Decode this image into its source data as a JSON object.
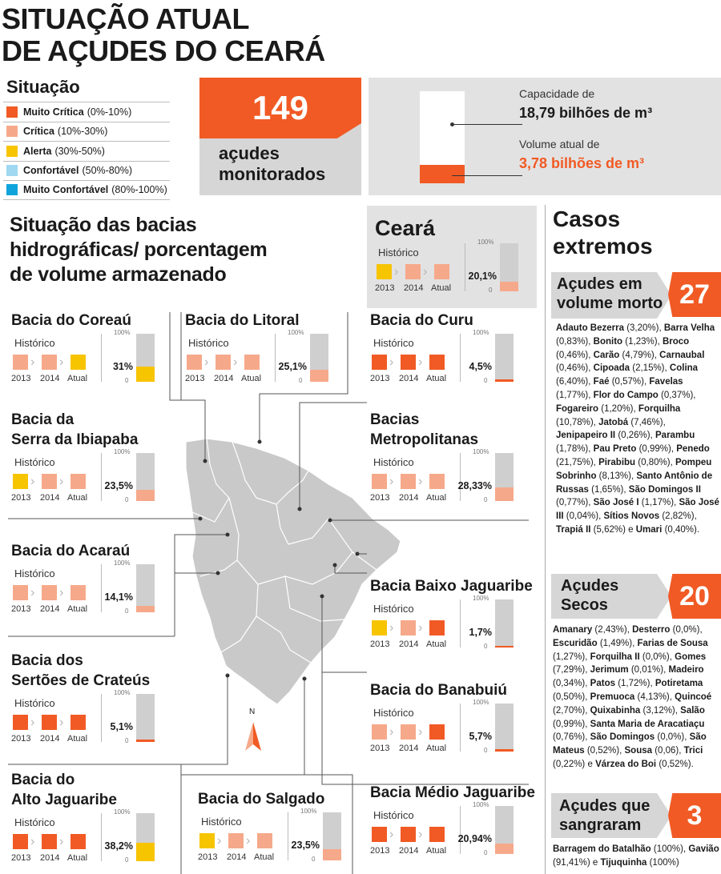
{
  "title": [
    "SITUAÇÃO ATUAL",
    "DE AÇUDES DO CEARÁ"
  ],
  "legend": {
    "title": "Situação",
    "items": [
      {
        "name": "Muito Crítica",
        "range": "(0%-10%)",
        "color": "#f15a24"
      },
      {
        "name": "Crítica",
        "range": "(10%-30%)",
        "color": "#f6a98a"
      },
      {
        "name": "Alerta",
        "range": "(30%-50%)",
        "color": "#f7c400"
      },
      {
        "name": "Confortável",
        "range": "(50%-80%)",
        "color": "#9fd8f0"
      },
      {
        "name": "Muito Confortável",
        "range": "(80%-100%)",
        "color": "#10a4dc"
      }
    ]
  },
  "monitored": {
    "number": "149",
    "label_line1": "açudes",
    "label_line2": "monitorados"
  },
  "capacity": {
    "capacity_label": "Capacidade de",
    "capacity_value": "18,79 bilhões de m³",
    "volume_label": "Volume atual de",
    "volume_value": "3,78 bilhões de m³",
    "fill_fraction": 0.201
  },
  "section_heading": [
    "Situação das bacias",
    "hidrográficas/ porcentagem",
    "de volume armazenado"
  ],
  "common": {
    "historico": "Histórico",
    "years": [
      "2013",
      "2014",
      "Atual"
    ],
    "axis_top": "100%",
    "axis_bottom": "0"
  },
  "colors": {
    "muito_critica": "#f15a24",
    "critica": "#f6a98a",
    "alerta": "#f7c400",
    "bar_bg": "#cfcfcf",
    "map": "#c9c9c9"
  },
  "chart_data": {
    "type": "bar",
    "categories_meaning": "basins",
    "basins": [
      {
        "id": "ceara",
        "name": "Ceará",
        "history": [
          "alerta",
          "critica",
          "critica"
        ],
        "value_label": "20,1%",
        "value": 20.1
      },
      {
        "id": "coreau",
        "name": "Bacia do Coreaú",
        "history": [
          "critica",
          "critica",
          "alerta"
        ],
        "value_label": "31%",
        "value": 31
      },
      {
        "id": "litoral",
        "name": "Bacia do Litoral",
        "history": [
          "critica",
          "critica",
          "critica"
        ],
        "value_label": "25,1%",
        "value": 25.1
      },
      {
        "id": "curu",
        "name": "Bacia do Curu",
        "history": [
          "muito_critica",
          "muito_critica",
          "muito_critica"
        ],
        "value_label": "4,5%",
        "value": 4.5
      },
      {
        "id": "ibiapaba",
        "name": "Bacia da Serra da Ibiapaba",
        "name_lines": [
          "Bacia da",
          "Serra da Ibiapaba"
        ],
        "history": [
          "alerta",
          "critica",
          "critica"
        ],
        "value_label": "23,5%",
        "value": 23.5
      },
      {
        "id": "metropolitanas",
        "name": "Bacias Metropolitanas",
        "name_lines": [
          "Bacias",
          "Metropolitanas"
        ],
        "history": [
          "critica",
          "critica",
          "critica"
        ],
        "value_label": "28,33%",
        "value": 28.33
      },
      {
        "id": "acarau",
        "name": "Bacia do Acaraú",
        "history": [
          "critica",
          "critica",
          "critica"
        ],
        "value_label": "14,1%",
        "value": 14.1
      },
      {
        "id": "baixo_jaguaribe",
        "name": "Bacia Baixo Jaguaribe",
        "history": [
          "alerta",
          "critica",
          "muito_critica"
        ],
        "value_label": "1,7%",
        "value": 1.7
      },
      {
        "id": "crateus",
        "name": "Bacia dos Sertões de Crateús",
        "name_lines": [
          "Bacia dos",
          "Sertões de Crateús"
        ],
        "history": [
          "muito_critica",
          "muito_critica",
          "muito_critica"
        ],
        "value_label": "5,1%",
        "value": 5.1
      },
      {
        "id": "banabuiu",
        "name": "Bacia do Banabuiú",
        "history": [
          "critica",
          "critica",
          "muito_critica"
        ],
        "value_label": "5,7%",
        "value": 5.7
      },
      {
        "id": "alto_jaguaribe",
        "name": "Bacia do Alto Jaguaribe",
        "name_lines": [
          "Bacia do",
          "Alto Jaguaribe"
        ],
        "history": [
          "muito_critica",
          "muito_critica",
          "muito_critica"
        ],
        "value_label": "38,2%",
        "value": 38.2
      },
      {
        "id": "salgado",
        "name": "Bacia do Salgado",
        "history": [
          "alerta",
          "critica",
          "critica"
        ],
        "value_label": "23,5%",
        "value": 23.5
      },
      {
        "id": "medio_jaguaribe",
        "name": "Bacia Médio Jaguaribe",
        "history": [
          "muito_critica",
          "muito_critica",
          "muito_critica"
        ],
        "value_label": "20,94%",
        "value": 20.94
      }
    ],
    "ylim": [
      0,
      100
    ]
  },
  "extremes": {
    "title": [
      "Casos",
      "extremos"
    ],
    "volume_morto": {
      "title": [
        "Açudes em",
        "volume morto"
      ],
      "count": "27",
      "items": [
        {
          "name": "Adauto Bezerra",
          "pct": "(3,20%)"
        },
        {
          "name": "Barra Velha",
          "pct": "(0,83%)"
        },
        {
          "name": "Bonito",
          "pct": "(1,23%)"
        },
        {
          "name": "Broco",
          "pct": "(0,46%)"
        },
        {
          "name": "Carão",
          "pct": "(4,79%)"
        },
        {
          "name": "Carnaubal",
          "pct": "(0,46%)"
        },
        {
          "name": "Cipoada",
          "pct": "(2,15%)"
        },
        {
          "name": "Colina",
          "pct": "(6,40%)"
        },
        {
          "name": "Faé",
          "pct": "(0,57%)"
        },
        {
          "name": "Favelas",
          "pct": "(1,77%)"
        },
        {
          "name": "Flor do Campo",
          "pct": "(0,37%)"
        },
        {
          "name": "Fogareiro",
          "pct": "(1,20%)"
        },
        {
          "name": "Forquilha",
          "pct": "(10,78%)"
        },
        {
          "name": "Jatobá",
          "pct": "(7,46%)"
        },
        {
          "name": "Jenipapeiro II",
          "pct": "(0,26%)"
        },
        {
          "name": "Parambu",
          "pct": "(1,78%)"
        },
        {
          "name": "Pau Preto",
          "pct": "(0,99%)"
        },
        {
          "name": "Penedo",
          "pct": "(21,75%)"
        },
        {
          "name": "Pirabibu",
          "pct": "(0,80%)"
        },
        {
          "name": "Pompeu Sobrinho",
          "pct": "(8,13%)"
        },
        {
          "name": "Santo Antônio de Russas",
          "pct": "(1,65%)"
        },
        {
          "name": "São Domingos II",
          "pct": "(0,77%)"
        },
        {
          "name": "São José I",
          "pct": "(1,17%)"
        },
        {
          "name": "São José III",
          "pct": "(0,04%)"
        },
        {
          "name": "Sítios Novos",
          "pct": "(2,82%)"
        },
        {
          "name": "Trapiá II",
          "pct": "(5,62%)"
        },
        {
          "name": "Umari",
          "pct": "(0,40%)"
        }
      ]
    },
    "secos": {
      "title": [
        "Açudes",
        "Secos"
      ],
      "count": "20",
      "items": [
        {
          "name": "Amanary",
          "pct": "(2,43%)"
        },
        {
          "name": "Desterro",
          "pct": "(0,0%)"
        },
        {
          "name": "Escuridão",
          "pct": "(1,49%)"
        },
        {
          "name": "Farias de Sousa",
          "pct": "(1,27%)"
        },
        {
          "name": "Forquilha II",
          "pct": "(0,0%)"
        },
        {
          "name": "Gomes",
          "pct": "(7,29%)"
        },
        {
          "name": "Jerimum",
          "pct": "(0,01%)"
        },
        {
          "name": "Madeiro",
          "pct": "(0,34%)"
        },
        {
          "name": "Patos",
          "pct": "(1,72%)"
        },
        {
          "name": "Potiretama",
          "pct": "(0,50%)"
        },
        {
          "name": "Premuoca",
          "pct": "(4,13%)"
        },
        {
          "name": "Quincoé",
          "pct": "(2,70%)"
        },
        {
          "name": "Quixabinha",
          "pct": "(3,12%)"
        },
        {
          "name": "Salão",
          "pct": "(0,99%)"
        },
        {
          "name": "Santa Maria de Aracatiaçu",
          "pct": "(0,76%)"
        },
        {
          "name": "São Domingos",
          "pct": "(0,0%)"
        },
        {
          "name": "São Mateus",
          "pct": "(0,52%)"
        },
        {
          "name": "Sousa",
          "pct": "(0,06)"
        },
        {
          "name": "Trici",
          "pct": "(0,22%)"
        },
        {
          "name": "Várzea do Boi",
          "pct": "(0,52%)"
        }
      ]
    },
    "sangraram": {
      "title": [
        "Açudes que",
        "sangraram"
      ],
      "count": "3",
      "items": [
        {
          "name": "Barragem do Batalhão",
          "pct": "(100%)"
        },
        {
          "name": "Gavião",
          "pct": "(91,41%)"
        },
        {
          "name": "Tijuquinha",
          "pct": "(100%)"
        }
      ]
    }
  },
  "compass": {
    "label": "N",
    "icon": "north-arrow-icon"
  }
}
